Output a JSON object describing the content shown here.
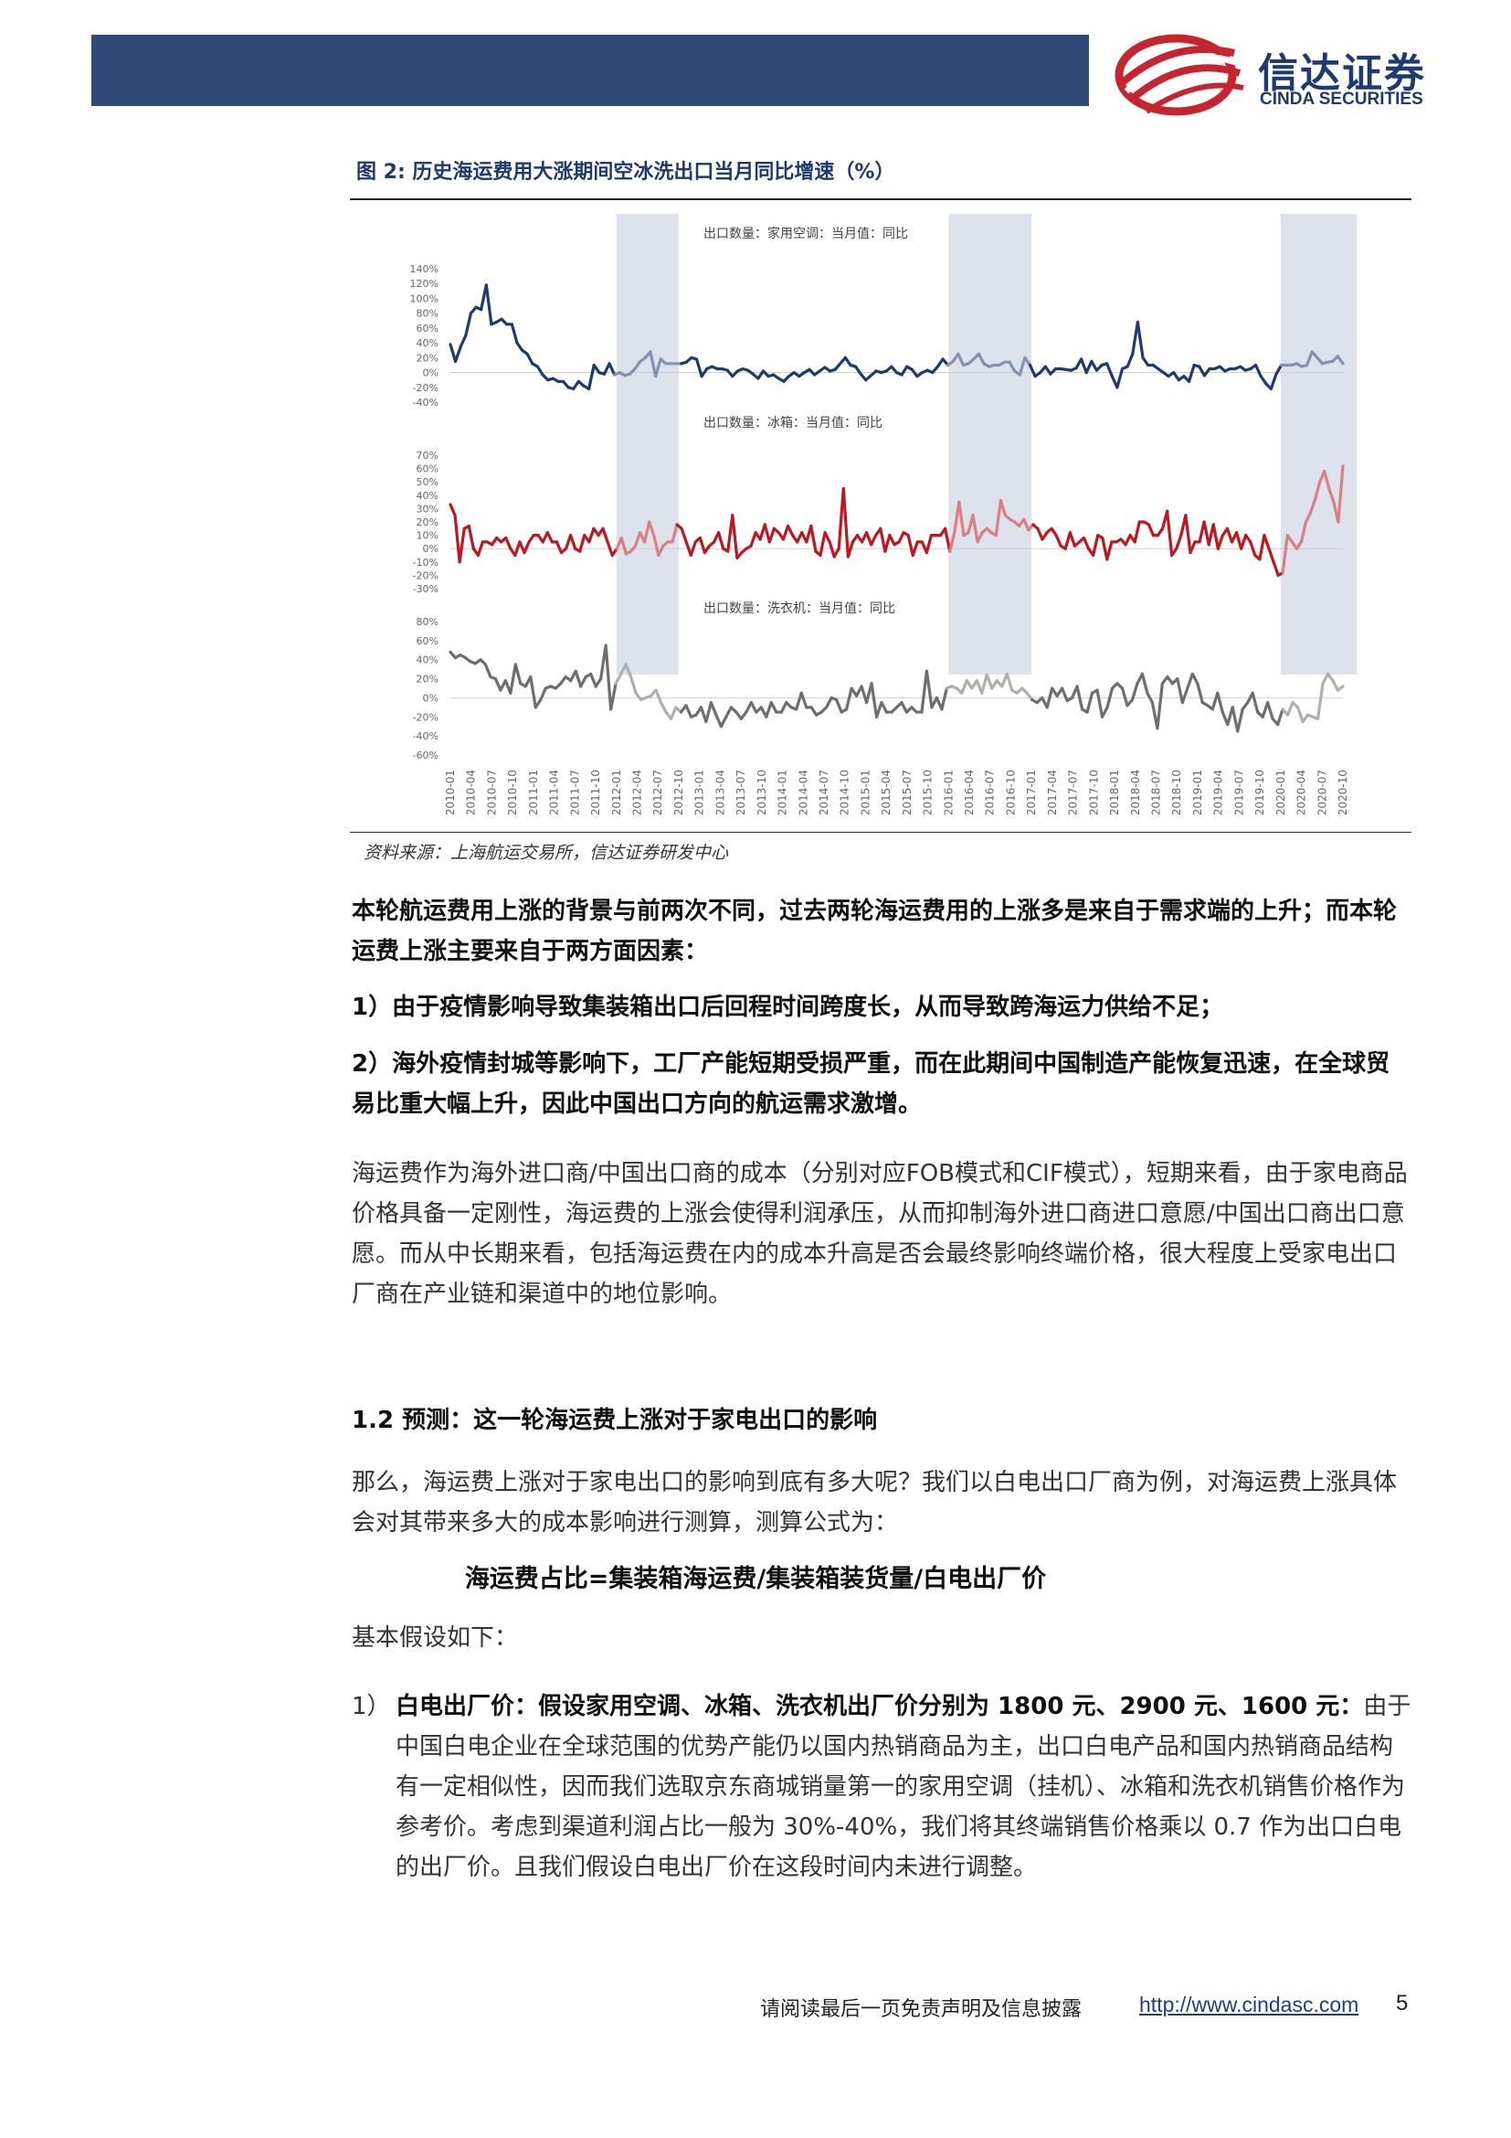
{
  "header": {
    "logo_cn": "信达证券",
    "logo_en": "CINDA SECURITIES",
    "colors": {
      "bar": "#2f4a77",
      "logo_red": "#c8242f",
      "logo_blue": "#1f3a70"
    }
  },
  "figure": {
    "caption": "图 2: 历史海运费用大涨期间空冰洗出口当月同比增速（%）",
    "source": "资料来源：上海航运交易所，信达证券研发中心"
  },
  "chart_data": {
    "type": "line",
    "x_tick_labels": [
      "2010-01",
      "2010-04",
      "2010-07",
      "2010-10",
      "2011-01",
      "2011-04",
      "2011-07",
      "2011-10",
      "2012-01",
      "2012-04",
      "2012-07",
      "2012-10",
      "2013-01",
      "2013-04",
      "2013-07",
      "2013-10",
      "2014-01",
      "2014-04",
      "2014-07",
      "2014-10",
      "2015-01",
      "2015-04",
      "2015-07",
      "2015-10",
      "2016-01",
      "2016-04",
      "2016-07",
      "2016-10",
      "2017-01",
      "2017-04",
      "2017-07",
      "2017-10",
      "2018-01",
      "2018-04",
      "2018-07",
      "2018-10",
      "2019-01",
      "2019-04",
      "2019-07",
      "2019-10",
      "2020-01",
      "2020-04",
      "2020-07",
      "2020-10"
    ],
    "shaded_periods": [
      [
        "2012-01",
        "2012-10"
      ],
      [
        "2016-01",
        "2017-01"
      ],
      [
        "2020-01",
        "2020-12"
      ]
    ],
    "panels": [
      {
        "title": "出口数量：家用空调：当月值：同比",
        "color": "#1f3a70",
        "y_ticks": [
          "140%",
          "120%",
          "100%",
          "80%",
          "60%",
          "40%",
          "20%",
          "0%",
          "-20%",
          "-40%"
        ],
        "ylim": [
          -40,
          140
        ],
        "values": [
          38,
          15,
          35,
          50,
          80,
          88,
          85,
          118,
          65,
          68,
          72,
          65,
          65,
          40,
          30,
          25,
          12,
          8,
          -3,
          -10,
          -8,
          -12,
          -12,
          -20,
          -22,
          -12,
          -18,
          -22,
          10,
          0,
          -2,
          12,
          -3,
          0,
          -4,
          -2,
          5,
          15,
          20,
          28,
          -5,
          18,
          12,
          12,
          12,
          12,
          14,
          20,
          18,
          -5,
          5,
          8,
          5,
          5,
          3,
          -5,
          2,
          5,
          3,
          -2,
          -8,
          2,
          -5,
          -3,
          -8,
          -12,
          -5,
          0,
          -5,
          0,
          4,
          -3,
          2,
          7,
          2,
          4,
          12,
          20,
          10,
          8,
          -2,
          -10,
          -4,
          2,
          0,
          2,
          8,
          0,
          -3,
          8,
          4,
          -5,
          0,
          3,
          0,
          8,
          18,
          10,
          15,
          25,
          10,
          12,
          18,
          25,
          12,
          8,
          10,
          10,
          14,
          14,
          2,
          -3,
          20,
          10,
          -5,
          0,
          8,
          -2,
          5,
          5,
          4,
          3,
          6,
          18,
          0,
          15,
          3,
          10,
          12,
          -5,
          -20,
          5,
          8,
          25,
          68,
          20,
          10,
          10,
          5,
          0,
          -5,
          0,
          -10,
          -5,
          -12,
          10,
          8,
          -4,
          5,
          5,
          8,
          2,
          5,
          5,
          8,
          3,
          5,
          10,
          -5,
          -15,
          -22,
          -2,
          10,
          10,
          10,
          12,
          8,
          10,
          28,
          20,
          12,
          14,
          15,
          22,
          12
        ]
      },
      {
        "title": "出口数量：冰箱：当月值：同比",
        "color": "#c0161d",
        "y_ticks": [
          "70%",
          "60%",
          "50%",
          "40%",
          "30%",
          "20%",
          "10%",
          "0%",
          "-10%",
          "-20%",
          "-30%"
        ],
        "ylim": [
          -30,
          70
        ],
        "values": [
          33,
          25,
          -10,
          15,
          17,
          0,
          -5,
          5,
          5,
          3,
          8,
          5,
          8,
          0,
          -5,
          5,
          -3,
          5,
          10,
          10,
          5,
          12,
          5,
          5,
          -3,
          0,
          10,
          0,
          -2,
          10,
          5,
          15,
          10,
          15,
          5,
          -5,
          0,
          8,
          -4,
          -2,
          2,
          12,
          5,
          20,
          10,
          -5,
          2,
          5,
          5,
          18,
          15,
          5,
          -5,
          5,
          8,
          -3,
          2,
          5,
          12,
          0,
          -2,
          25,
          -7,
          -3,
          0,
          2,
          12,
          7,
          18,
          5,
          15,
          12,
          7,
          17,
          10,
          5,
          12,
          5,
          17,
          -2,
          -5,
          12,
          5,
          -6,
          0,
          45,
          -6,
          5,
          10,
          5,
          12,
          3,
          10,
          15,
          -2,
          10,
          3,
          5,
          12,
          10,
          -5,
          5,
          5,
          -3,
          10,
          10,
          10,
          15,
          -2,
          12,
          35,
          10,
          12,
          25,
          5,
          12,
          15,
          12,
          10,
          36,
          25,
          22,
          20,
          17,
          22,
          14,
          18,
          15,
          7,
          12,
          15,
          10,
          2,
          0,
          12,
          2,
          5,
          8,
          0,
          -5,
          10,
          8,
          -8,
          5,
          5,
          7,
          3,
          10,
          5,
          20,
          20,
          18,
          10,
          10,
          15,
          28,
          -5,
          0,
          10,
          25,
          -3,
          5,
          5,
          20,
          3,
          18,
          0,
          10,
          15,
          5,
          12,
          0,
          10,
          5,
          -5,
          -8,
          10,
          0,
          -10,
          -20,
          -18,
          10,
          5,
          0,
          5,
          20,
          27,
          37,
          50,
          58,
          45,
          35,
          20,
          62
        ]
      },
      {
        "title": "出口数量：洗衣机：当月值：同比",
        "color": "#6e6e6e",
        "y_ticks": [
          "80%",
          "60%",
          "40%",
          "20%",
          "0%",
          "-20%",
          "-40%",
          "-60%"
        ],
        "ylim": [
          -60,
          80
        ],
        "values": [
          48,
          42,
          45,
          42,
          38,
          36,
          40,
          35,
          22,
          20,
          8,
          18,
          5,
          35,
          15,
          12,
          22,
          -10,
          -2,
          10,
          12,
          10,
          15,
          22,
          18,
          28,
          12,
          22,
          25,
          12,
          20,
          55,
          -12,
          15,
          25,
          35,
          22,
          5,
          -2,
          0,
          2,
          8,
          -5,
          -15,
          -22,
          -10,
          -15,
          -8,
          -20,
          -18,
          -10,
          -25,
          -5,
          -18,
          -30,
          -20,
          -10,
          -15,
          -22,
          -15,
          -5,
          -15,
          -10,
          -20,
          -5,
          -15,
          -15,
          -5,
          -10,
          -12,
          5,
          -10,
          -10,
          -18,
          -15,
          -10,
          0,
          -2,
          -15,
          -12,
          10,
          2,
          12,
          -5,
          15,
          -20,
          -5,
          -15,
          -15,
          -10,
          -5,
          -15,
          -10,
          -15,
          -15,
          28,
          -10,
          0,
          -12,
          10,
          12,
          10,
          5,
          18,
          10,
          18,
          5,
          24,
          10,
          18,
          12,
          25,
          8,
          5,
          10,
          5,
          -2,
          -5,
          0,
          -10,
          10,
          2,
          10,
          -3,
          0,
          12,
          -12,
          -15,
          5,
          8,
          -20,
          -10,
          10,
          15,
          10,
          -8,
          -2,
          15,
          25,
          5,
          -5,
          -32,
          15,
          22,
          15,
          20,
          -5,
          10,
          25,
          15,
          -5,
          -8,
          -12,
          5,
          -15,
          -28,
          -10,
          -35,
          -12,
          -5,
          5,
          -15,
          -20,
          -5,
          -22,
          -28,
          -12,
          -18,
          -5,
          -10,
          -25,
          -18,
          -20,
          -22,
          15,
          25,
          18,
          8,
          12
        ]
      }
    ]
  },
  "body": {
    "p1": "本轮航运费用上涨的背景与前两次不同，过去两轮海运费用的上涨多是来自于需求端的上升；而本轮运费上涨主要来自于两方面因素：",
    "p2": "1）由于疫情影响导致集装箱出口后回程时间跨度长，从而导致跨海运力供给不足；",
    "p3": "2）海外疫情封城等影响下，工厂产能短期受损严重，而在此期间中国制造产能恢复迅速，在全球贸易比重大幅上升，因此中国出口方向的航运需求激增。",
    "p4": "海运费作为海外进口商/中国出口商的成本（分别对应FOB模式和CIF模式），短期来看，由于家电商品价格具备一定刚性，海运费的上涨会使得利润承压，从而抑制海外进口商进口意愿/中国出口商出口意愿。而从中长期来看，包括海运费在内的成本升高是否会最终影响终端价格，很大程度上受家电出口厂商在产业链和渠道中的地位影响。",
    "section_title": "1.2 预测：这一轮海运费上涨对于家电出口的影响",
    "p5": "那么，海运费上涨对于家电出口的影响到底有多大呢？我们以白电出口厂商为例，对海运费上涨具体会对其带来多大的成本影响进行测算，测算公式为：",
    "formula": "海运费占比=集装箱海运费/集装箱装货量/白电出厂价",
    "p6": "基本假设如下：",
    "item1_num": "1）",
    "item1_bold": "白电出厂价：假设家用空调、冰箱、洗衣机出厂价分别为 1800 元、2900 元、1600 元：",
    "item1_text": "由于中国白电企业在全球范围的优势产能仍以国内热销商品为主，出口白电产品和国内热销商品结构有一定相似性，因而我们选取京东商城销量第一的家用空调（挂机）、冰箱和洗衣机销售价格作为参考价。考虑到渠道利润占比一般为 30%-40%，我们将其终端销售价格乘以 0.7 作为出口白电的出厂价。且我们假设白电出厂价在这段时间内未进行调整。"
  },
  "footer": {
    "text": "请阅读最后一页免责声明及信息披露",
    "link": "http://www.cindasc.com",
    "page": "5"
  }
}
